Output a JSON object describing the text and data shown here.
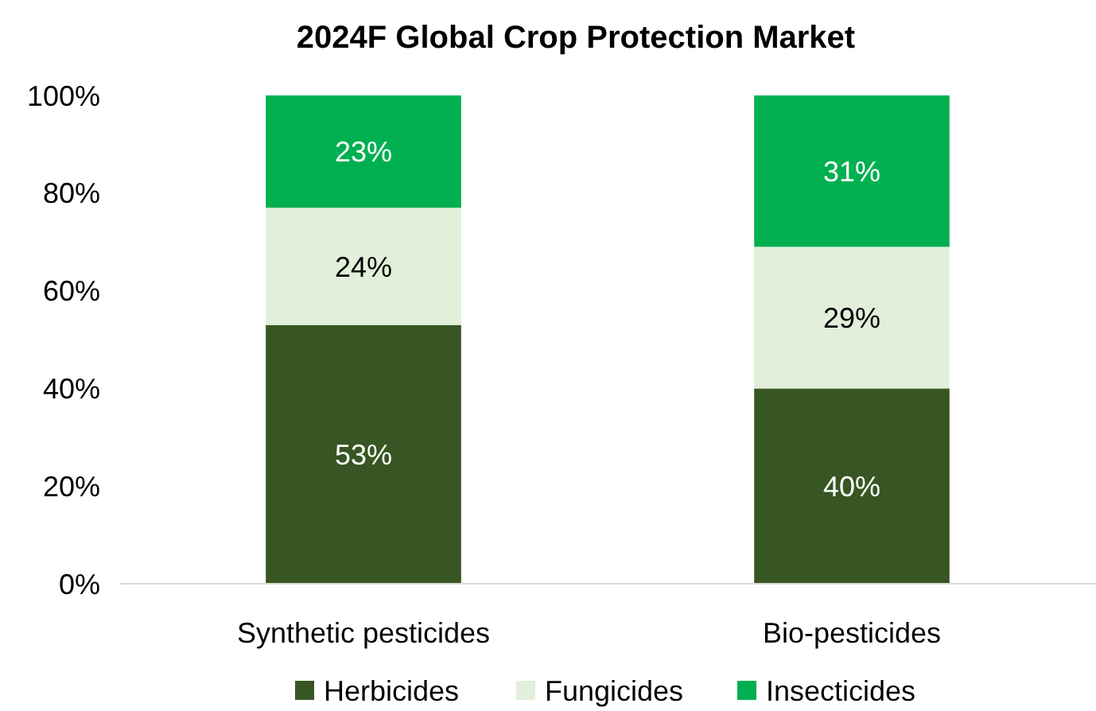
{
  "chart_data": {
    "type": "bar",
    "title": "2024F Global Crop Protection Market",
    "categories": [
      "Synthetic pesticides",
      "Bio-pesticides"
    ],
    "stacked": true,
    "ylim": [
      0,
      100
    ],
    "yticks": [
      {
        "value": 0,
        "label": "0%"
      },
      {
        "value": 20,
        "label": "20%"
      },
      {
        "value": 40,
        "label": "40%"
      },
      {
        "value": 60,
        "label": "60%"
      },
      {
        "value": 80,
        "label": "80%"
      },
      {
        "value": 100,
        "label": "100%"
      }
    ],
    "grid": false,
    "legend": "bottom",
    "series": [
      {
        "name": "Herbicides",
        "color": "#375623",
        "values": [
          53,
          40
        ],
        "value_labels": [
          "53%",
          "40%"
        ]
      },
      {
        "name": "Fungicides",
        "color": "#e2efda",
        "values": [
          24,
          29
        ],
        "value_labels": [
          "24%",
          "29%"
        ]
      },
      {
        "name": "Insecticides",
        "color": "#00b050",
        "values": [
          23,
          31
        ],
        "value_labels": [
          "23%",
          "31%"
        ]
      }
    ]
  }
}
